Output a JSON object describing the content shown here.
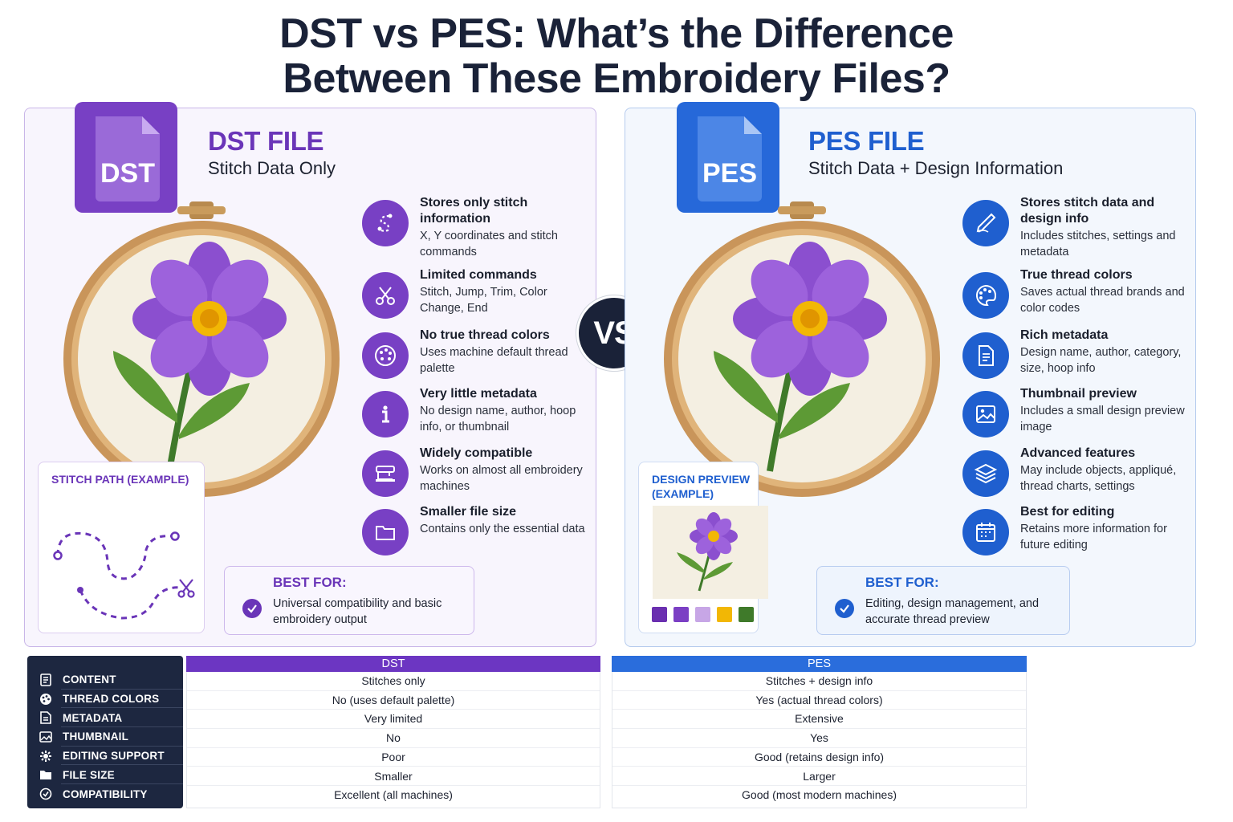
{
  "title": {
    "line1": "DST vs PES: What’s the Difference",
    "line2": "Between These Embroidery Files?"
  },
  "vs_label": "VS",
  "dst": {
    "badge_text": "DST",
    "heading": "DST FILE",
    "subheading": "Stitch Data Only",
    "features": [
      {
        "icon": "stitch-path-icon",
        "title": "Stores only stitch information",
        "desc": "X, Y coordinates and stitch commands"
      },
      {
        "icon": "scissors-icon",
        "title": "Limited commands",
        "desc": "Stitch, Jump, Trim, Color Change, End"
      },
      {
        "icon": "palette-icon",
        "title": "No true thread colors",
        "desc": "Uses machine default thread palette"
      },
      {
        "icon": "info-icon",
        "title": "Very little metadata",
        "desc": "No design name, author, hoop info, or thumbnail"
      },
      {
        "icon": "sewing-machine-icon",
        "title": "Widely compatible",
        "desc": "Works on almost all embroidery machines"
      },
      {
        "icon": "folder-icon",
        "title": "Smaller file size",
        "desc": "Contains only the essential data"
      }
    ],
    "example_title": "STITCH PATH (EXAMPLE)",
    "best_for_label": "BEST FOR:",
    "best_for_text": "Universal compatibility and basic embroidery output"
  },
  "pes": {
    "badge_text": "PES",
    "heading": "PES FILE",
    "subheading": "Stitch Data + Design Information",
    "features": [
      {
        "icon": "needle-pen-icon",
        "title": "Stores stitch data and design info",
        "desc": "Includes stitches, settings and metadata"
      },
      {
        "icon": "palette-icon",
        "title": "True thread colors",
        "desc": "Saves actual thread brands and color codes"
      },
      {
        "icon": "document-icon",
        "title": "Rich metadata",
        "desc": "Design name, author, category, size, hoop info"
      },
      {
        "icon": "image-icon",
        "title": "Thumbnail preview",
        "desc": "Includes a small design preview image"
      },
      {
        "icon": "layers-icon",
        "title": "Advanced features",
        "desc": "May include objects, appliqué, thread charts, settings"
      },
      {
        "icon": "calendar-icon",
        "title": "Best for editing",
        "desc": "Retains more information for future editing"
      }
    ],
    "example_title": "DESIGN PREVIEW (EXAMPLE)",
    "swatches": [
      "#6a2fb0",
      "#7b3fc4",
      "#c7a6e6",
      "#f2b705",
      "#3f7a2a"
    ],
    "best_for_label": "BEST FOR:",
    "best_for_text": "Editing, design management, and accurate thread preview"
  },
  "table": {
    "rows": [
      {
        "icon": "content-icon",
        "label": "CONTENT"
      },
      {
        "icon": "thread-colors-icon",
        "label": "THREAD COLORS"
      },
      {
        "icon": "metadata-icon",
        "label": "METADATA"
      },
      {
        "icon": "thumbnail-icon",
        "label": "THUMBNAIL"
      },
      {
        "icon": "editing-icon",
        "label": "EDITING SUPPORT"
      },
      {
        "icon": "file-size-icon",
        "label": "FILE SIZE"
      },
      {
        "icon": "compatibility-icon",
        "label": "COMPATIBILITY"
      }
    ],
    "dst_header": "DST",
    "pes_header": "PES",
    "dst_values": [
      "Stitches only",
      "No (uses default palette)",
      "Very limited",
      "No",
      "Poor",
      "Smaller",
      "Excellent (all machines)"
    ],
    "pes_values": [
      "Stitches + design info",
      "Yes (actual thread colors)",
      "Extensive",
      "Yes",
      "Good (retains design info)",
      "Larger",
      "Good (most modern machines)"
    ]
  },
  "colors": {
    "dst_accent": "#7840c4",
    "pes_accent": "#1f5fcf",
    "navy": "#1a2238"
  }
}
